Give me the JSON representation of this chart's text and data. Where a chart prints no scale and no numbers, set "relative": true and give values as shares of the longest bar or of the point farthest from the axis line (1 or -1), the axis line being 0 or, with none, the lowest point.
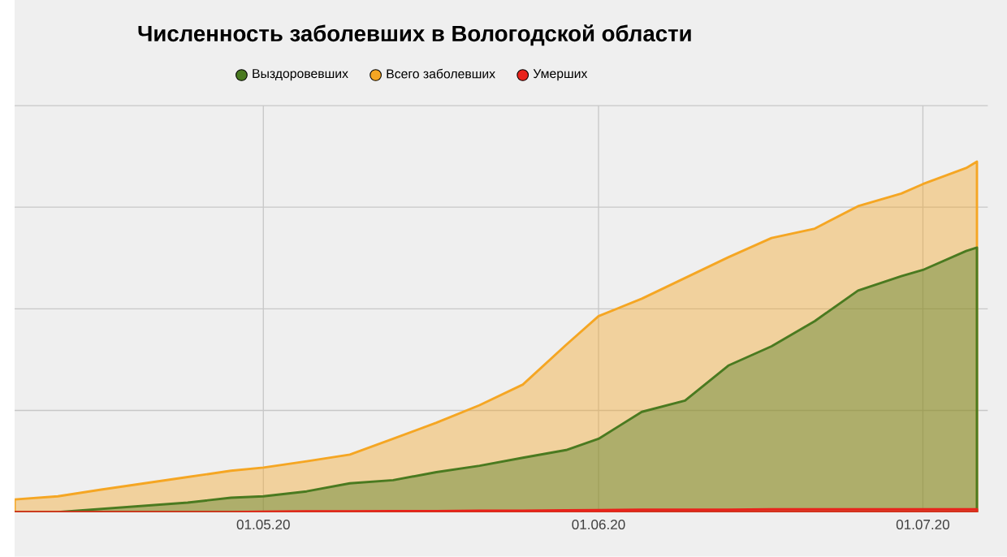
{
  "chart_data": {
    "type": "area",
    "title": "Численность заболевших в Вологодской области",
    "relative": true,
    "x": [
      "2020-04-08",
      "2020-04-12",
      "2020-04-16",
      "2020-04-20",
      "2020-04-24",
      "2020-04-28",
      "2020-05-01",
      "2020-05-05",
      "2020-05-09",
      "2020-05-13",
      "2020-05-17",
      "2020-05-21",
      "2020-05-25",
      "2020-05-29",
      "2020-06-01",
      "2020-06-05",
      "2020-06-09",
      "2020-06-13",
      "2020-06-17",
      "2020-06-21",
      "2020-06-25",
      "2020-06-29",
      "2020-07-01",
      "2020-07-05",
      "2020-07-06"
    ],
    "series": [
      {
        "name": "Выздоровевших",
        "color": "#4a7a20",
        "values": [
          0,
          0,
          0.009,
          0.018,
          0.027,
          0.041,
          0.045,
          0.059,
          0.082,
          0.091,
          0.114,
          0.132,
          0.155,
          0.177,
          0.209,
          0.286,
          0.318,
          0.418,
          0.473,
          0.545,
          0.632,
          0.673,
          0.691,
          0.745,
          0.755
        ]
      },
      {
        "name": "Всего заболевших",
        "color": "#f5a623",
        "values": [
          0.036,
          0.045,
          0.064,
          0.082,
          0.1,
          0.118,
          0.127,
          0.145,
          0.164,
          0.209,
          0.255,
          0.305,
          0.364,
          0.477,
          0.559,
          0.609,
          0.668,
          0.727,
          0.782,
          0.809,
          0.873,
          0.909,
          0.936,
          0.982,
          1
        ]
      },
      {
        "name": "Умерших",
        "color": "#e8231c",
        "values": [
          0,
          0,
          0,
          0,
          0,
          0,
          0.001,
          0.002,
          0.002,
          0.003,
          0.003,
          0.004,
          0.004,
          0.005,
          0.006,
          0.007,
          0.007,
          0.007,
          0.008,
          0.008,
          0.008,
          0.008,
          0.008,
          0.008,
          0.008
        ]
      }
    ],
    "xlim": [
      "2020-04-08",
      "2020-07-07"
    ],
    "xticks": [
      {
        "value": "2020-05-01",
        "label": "01.05.20"
      },
      {
        "value": "2020-06-01",
        "label": "01.06.20"
      },
      {
        "value": "2020-07-01",
        "label": "01.07.20"
      }
    ],
    "grid": true,
    "legend": "top",
    "line_style": "solid",
    "marker": "none"
  }
}
